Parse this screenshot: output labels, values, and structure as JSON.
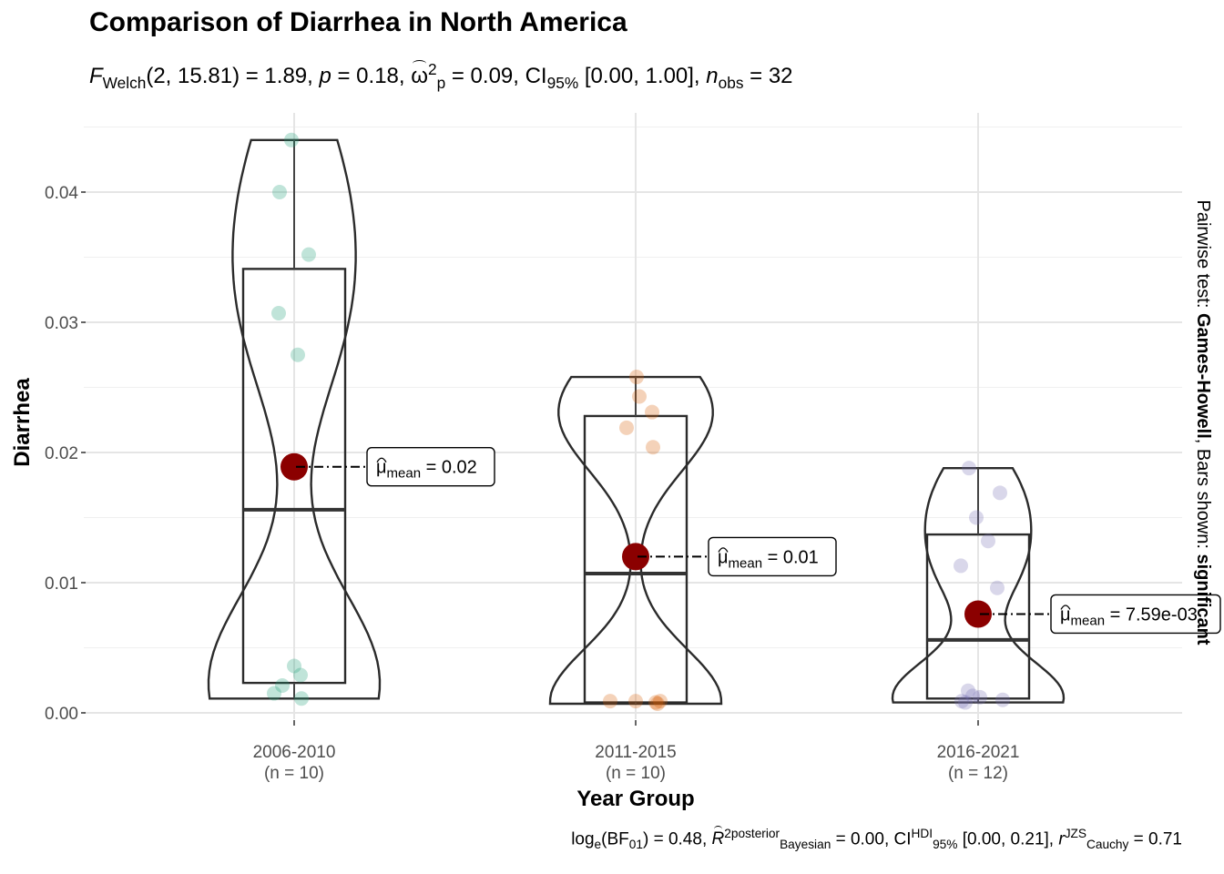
{
  "title": "Comparison of Diarrhea in North America",
  "subtitle": {
    "f_sym": "F",
    "f_sub": "Welch",
    "f_args": "(2, 15.81) = 1.89, ",
    "p_sym": "p",
    "p_val": " = 0.18, ",
    "omega_sym": "ω",
    "omega_sup": "2",
    "omega_sub": "p",
    "omega_val": " = 0.09, CI",
    "ci_sub": "95%",
    "ci_val": " [0.00, 1.00], ",
    "n_sym": "n",
    "n_sub": "obs",
    "n_val": " = 32"
  },
  "caption": {
    "log_text": "log",
    "log_sub": "e",
    "bf_text": "(BF",
    "bf_sub": "01",
    "bf_val": ") = 0.48, ",
    "r_sym": "R",
    "r_sup": "2",
    "r_sup_text": "posterior",
    "r_sub": "Bayesian",
    "r_val": " = 0.00, CI",
    "ci_sup": "HDI",
    "ci_sub": "95%",
    "ci_val": " [0.00, 0.21], ",
    "rc_sym": "r",
    "rc_sup": "JZS",
    "rc_sub": "Cauchy",
    "rc_val": " = 0.71"
  },
  "side_note": {
    "prefix": "Pairwise test: ",
    "test": "Games-Howell",
    "middle": ", Bars shown: ",
    "shown": "significant"
  },
  "chart_data": {
    "type": "violin",
    "xlabel": "Year Group",
    "ylabel": "Diarrhea",
    "ylim": [
      0,
      0.044
    ],
    "yticks": [
      0.0,
      0.01,
      0.02,
      0.03,
      0.04
    ],
    "ytick_labels": [
      "0.00",
      "0.01",
      "0.02",
      "0.03",
      "0.04"
    ],
    "grid": true,
    "mean_color": "#8b0000",
    "groups": [
      {
        "category": "2006-2010",
        "n_label": "(n = 10)",
        "color": "#1b9e77",
        "points": [
          0.044,
          0.04,
          0.0352,
          0.0307,
          0.0275,
          0.0036,
          0.0029,
          0.0021,
          0.0015,
          0.0011
        ],
        "q1": 0.0023,
        "median": 0.0156,
        "q3": 0.0341,
        "whisker_low": 0.0011,
        "whisker_high": 0.044,
        "mean": 0.0189,
        "mean_label_sym": "μ",
        "mean_label_sub": "mean",
        "mean_label_val": " = 0.02"
      },
      {
        "category": "2011-2015",
        "n_label": "(n = 10)",
        "color": "#d95f02",
        "points": [
          0.0258,
          0.0243,
          0.0231,
          0.0219,
          0.0204,
          0.0009,
          0.0009,
          0.0009,
          0.0008,
          0.0007
        ],
        "q1": 0.0008,
        "median": 0.0107,
        "q3": 0.0228,
        "whisker_low": 0.0007,
        "whisker_high": 0.0258,
        "mean": 0.012,
        "mean_label_sym": "μ",
        "mean_label_sub": "mean",
        "mean_label_val": " = 0.01"
      },
      {
        "category": "2016-2021",
        "n_label": "(n = 12)",
        "color": "#7570b3",
        "points": [
          0.0188,
          0.0169,
          0.015,
          0.0132,
          0.0113,
          0.0096,
          0.0017,
          0.0013,
          0.0012,
          0.001,
          0.0009,
          0.0008
        ],
        "q1": 0.0011,
        "median": 0.0056,
        "q3": 0.0137,
        "whisker_low": 0.0008,
        "whisker_high": 0.0188,
        "mean": 0.00759,
        "mean_label_sym": "μ",
        "mean_label_sub": "mean",
        "mean_label_val": " = 7.59e-03"
      }
    ]
  }
}
